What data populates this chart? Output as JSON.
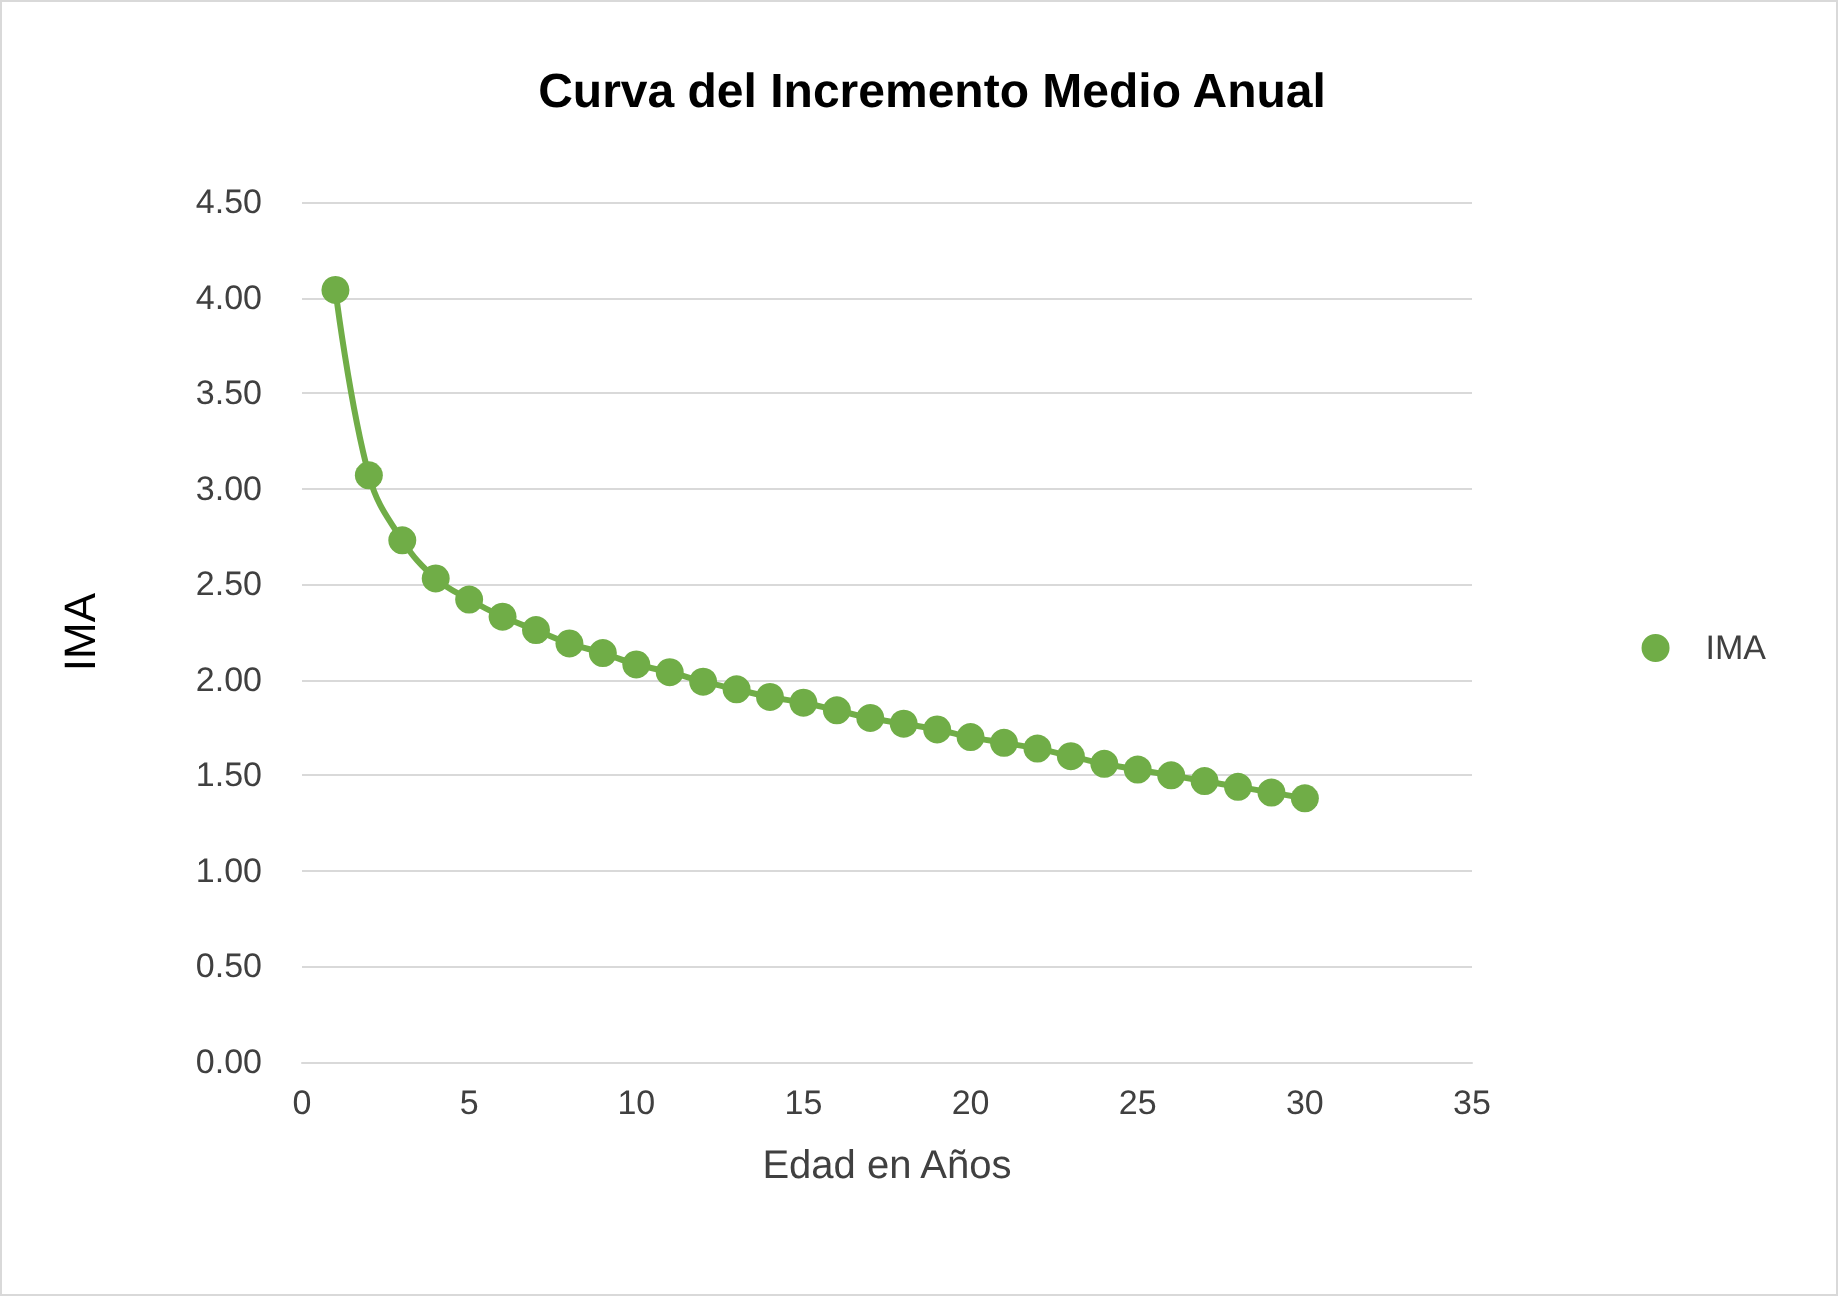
{
  "chart_data": {
    "type": "line",
    "title": "Curva del Incremento Medio Anual",
    "xlabel": "Edad en Años",
    "ylabel": "IMA",
    "x": [
      1,
      2,
      3,
      4,
      5,
      6,
      7,
      8,
      9,
      10,
      11,
      12,
      13,
      14,
      15,
      16,
      17,
      18,
      19,
      20,
      21,
      22,
      23,
      24,
      25,
      26,
      27,
      28,
      29,
      30
    ],
    "series": [
      {
        "name": "IMA",
        "color": "#70ad47",
        "values": [
          4.04,
          3.07,
          2.73,
          2.53,
          2.42,
          2.33,
          2.26,
          2.19,
          2.14,
          2.08,
          2.04,
          1.99,
          1.95,
          1.91,
          1.88,
          1.84,
          1.8,
          1.77,
          1.74,
          1.7,
          1.67,
          1.64,
          1.6,
          1.56,
          1.53,
          1.5,
          1.47,
          1.44,
          1.41,
          1.38
        ]
      }
    ],
    "xlim": [
      0,
      35
    ],
    "xticks": [
      0,
      5,
      10,
      15,
      20,
      25,
      30,
      35
    ],
    "ylim": [
      0,
      4.5
    ],
    "yticks": [
      {
        "value": 0,
        "label": "0.00"
      },
      {
        "value": 0.5,
        "label": "0.50"
      },
      {
        "value": 1,
        "label": "1.00"
      },
      {
        "value": 1.5,
        "label": "1.50"
      },
      {
        "value": 2,
        "label": "2.00"
      },
      {
        "value": 2.5,
        "label": "2.50"
      },
      {
        "value": 3,
        "label": "3.00"
      },
      {
        "value": 3.5,
        "label": "3.50"
      },
      {
        "value": 4,
        "label": "4.00"
      },
      {
        "value": 4.5,
        "label": "4.50"
      }
    ],
    "grid": "y",
    "legend": "right",
    "marker": "circle",
    "line_style": "solid"
  }
}
